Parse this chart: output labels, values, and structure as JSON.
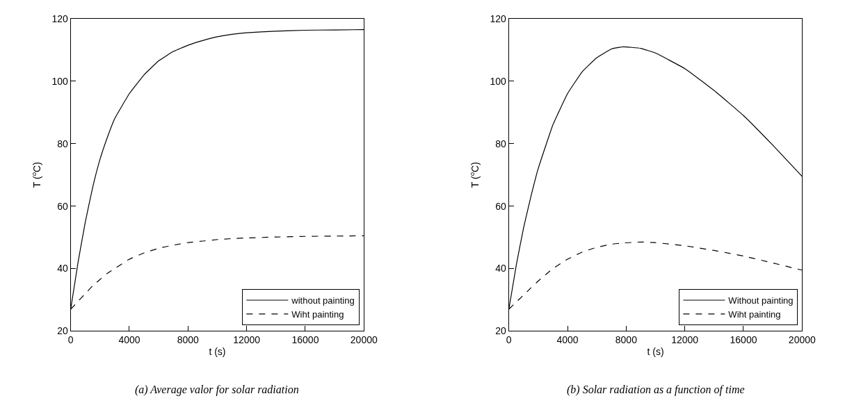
{
  "chart_data": [
    {
      "type": "line",
      "xlabel": "t (s)",
      "ylabel": "T ($^{o}$C)",
      "annotations": [
        "(a) Average valor for solar radiation"
      ],
      "xlim": [
        0,
        20000
      ],
      "xticks": [
        0,
        4000,
        8000,
        12000,
        16000,
        20000
      ],
      "ylim": [
        20,
        120
      ],
      "yticks": [
        20,
        40,
        60,
        80,
        100,
        120
      ],
      "legend": "bottom right",
      "x": [
        0,
        500,
        1000,
        1500,
        2000,
        2500,
        3000,
        4000,
        5000,
        6000,
        7000,
        8000,
        9000,
        10000,
        11000,
        12000,
        14000,
        16000,
        18000,
        20000
      ],
      "series": [
        {
          "name": "without painting",
          "color": "#000000",
          "line_style": "solid",
          "values": [
            27,
            42,
            55,
            66,
            75,
            82,
            88,
            96,
            102,
            106.5,
            109.5,
            111.5,
            113,
            114.2,
            115,
            115.5,
            116,
            116.3,
            116.4,
            116.5
          ]
        },
        {
          "name": "Wiht painting",
          "color": "#000000",
          "line_style": "dashed",
          "values": [
            27,
            29.5,
            32,
            34.5,
            36.5,
            38.5,
            40,
            43,
            45,
            46.5,
            47.5,
            48.3,
            48.8,
            49.3,
            49.6,
            49.8,
            50.1,
            50.3,
            50.4,
            50.5
          ]
        }
      ]
    },
    {
      "type": "line",
      "xlabel": "t (s)",
      "ylabel": "T ($^{o}$C)",
      "annotations": [
        "(b) Solar radiation as a function of time"
      ],
      "xlim": [
        0,
        20000
      ],
      "xticks": [
        0,
        4000,
        8000,
        12000,
        16000,
        20000
      ],
      "ylim": [
        20,
        120
      ],
      "yticks": [
        20,
        40,
        60,
        80,
        100,
        120
      ],
      "legend": "bottom right",
      "x": [
        0,
        500,
        1000,
        1500,
        2000,
        3000,
        4000,
        5000,
        6000,
        7000,
        7800,
        9000,
        10000,
        12000,
        14000,
        16000,
        18000,
        20000
      ],
      "series": [
        {
          "name": "Without painting",
          "color": "#000000",
          "line_style": "solid",
          "values": [
            27,
            41,
            53,
            63,
            72,
            86,
            96,
            103,
            107.5,
            110.3,
            111,
            110.5,
            109,
            104,
            97,
            89,
            79.5,
            69.5
          ]
        },
        {
          "name": "Wiht painting",
          "color": "#000000",
          "line_style": "dashed",
          "values": [
            27,
            29.3,
            31.5,
            33.8,
            36,
            40,
            43,
            45.3,
            46.8,
            47.8,
            48.2,
            48.5,
            48.3,
            47.3,
            45.8,
            44,
            41.8,
            39.5
          ]
        }
      ]
    }
  ]
}
